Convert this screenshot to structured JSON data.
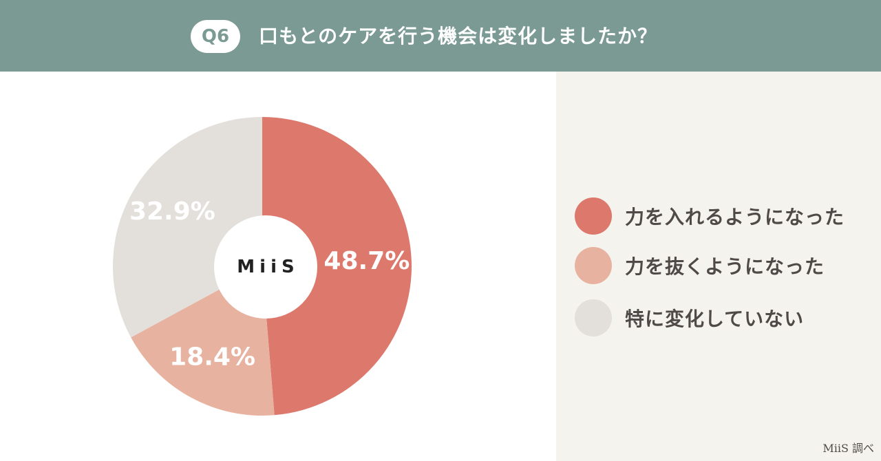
{
  "header": {
    "badge": "Q6",
    "title": "口もとのケアを行う機会は変化しましたか？"
  },
  "center_logo": "MiiS",
  "credit": "MiiS 調べ",
  "chart_data": {
    "type": "pie",
    "title": "口もとのケアを行う機会は変化しましたか？",
    "slices": [
      {
        "label": "力を入れるようになった",
        "value": 48.7,
        "value_label": "48.7%",
        "color": "#dd786d",
        "label_color": "#ffffff"
      },
      {
        "label": "力を抜くようになった",
        "value": 18.4,
        "value_label": "18.4%",
        "color": "#e8b2a1",
        "label_color": "#ffffff"
      },
      {
        "label": "特に変化していない",
        "value": 32.9,
        "value_label": "32.9%",
        "color": "#e3dfda",
        "label_color": "#ffffff"
      }
    ],
    "legend_position": "right"
  }
}
